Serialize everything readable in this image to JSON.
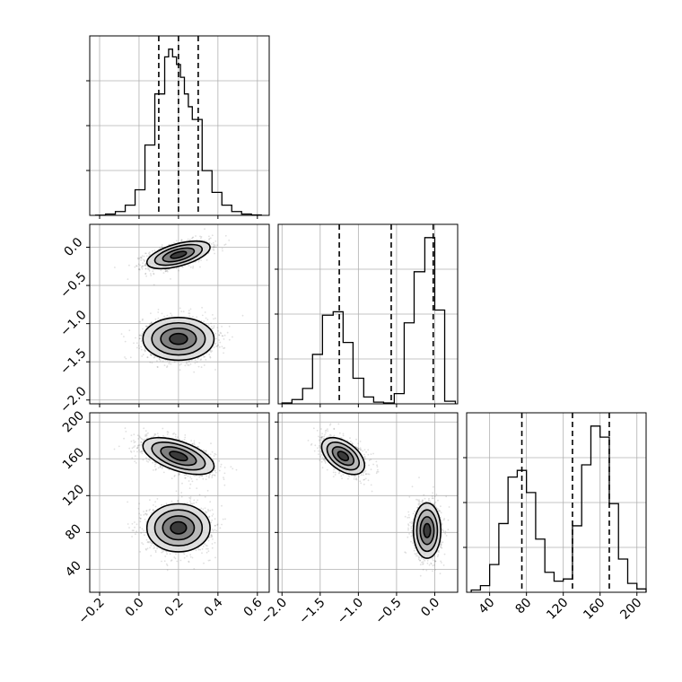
{
  "chart_data": {
    "type": "corner",
    "parameters": [
      {
        "ticks": [
          "−0.2",
          "0.0",
          "0.2",
          "0.4",
          "0.6"
        ],
        "tick_values": [
          -0.2,
          0.0,
          0.2,
          0.4,
          0.6
        ],
        "range": [
          -0.25,
          0.66
        ]
      },
      {
        "ticks": [
          "−2.0",
          "−1.5",
          "−1.0",
          "−0.5",
          "0.0"
        ],
        "tick_values": [
          -2.0,
          -1.5,
          -1.0,
          -0.5,
          0.0
        ],
        "range": [
          -2.05,
          0.3
        ]
      },
      {
        "ticks": [
          "40",
          "80",
          "120",
          "160",
          "200"
        ],
        "tick_values": [
          40,
          80,
          120,
          160,
          200
        ],
        "range": [
          15,
          210
        ]
      }
    ],
    "marginals": [
      {
        "param": 0,
        "quantiles": [
          0.1,
          0.2,
          0.3
        ],
        "bin_edges": [
          -0.22,
          -0.17,
          -0.12,
          -0.07,
          -0.02,
          0.03,
          0.08,
          0.13,
          0.15,
          0.17,
          0.19,
          0.21,
          0.23,
          0.25,
          0.27,
          0.32,
          0.37,
          0.42,
          0.47,
          0.52,
          0.57,
          0.62
        ],
        "counts": [
          0.2,
          1,
          3,
          8,
          20,
          55,
          95,
          124,
          130,
          124,
          118,
          108,
          95,
          85,
          75,
          35,
          18,
          8,
          3,
          1,
          0.3
        ]
      },
      {
        "param": 1,
        "quantiles": [
          -1.25,
          -0.57,
          -0.02
        ],
        "bin_edges": [
          -2.0,
          -1.87,
          -1.73,
          -1.6,
          -1.47,
          -1.33,
          -1.2,
          -1.07,
          -0.93,
          -0.8,
          -0.67,
          -0.53,
          -0.4,
          -0.27,
          -0.13,
          0.0,
          0.13,
          0.27
        ],
        "counts": [
          1,
          5,
          18,
          58,
          104,
          108,
          72,
          30,
          8,
          2,
          1,
          12,
          95,
          155,
          195,
          110,
          3
        ]
      },
      {
        "param": 2,
        "quantiles": [
          75,
          130,
          170
        ],
        "bin_edges": [
          20,
          30,
          40,
          50,
          60,
          70,
          80,
          90,
          100,
          110,
          120,
          130,
          140,
          150,
          160,
          170,
          180,
          190,
          200,
          210
        ],
        "counts": [
          2,
          6,
          25,
          62,
          104,
          110,
          90,
          48,
          18,
          10,
          12,
          60,
          115,
          150,
          140,
          80,
          30,
          8,
          3
        ]
      }
    ],
    "joint_panels": [
      {
        "x_param": 0,
        "y_param": 1,
        "modes": [
          {
            "center": [
              0.2,
              -0.1
            ],
            "spread": [
              0.08,
              0.09
            ],
            "correlation": 0.55
          },
          {
            "center": [
              0.2,
              -1.2
            ],
            "spread": [
              0.09,
              0.14
            ],
            "correlation": 0.0
          }
        ]
      },
      {
        "x_param": 0,
        "y_param": 2,
        "modes": [
          {
            "center": [
              0.2,
              163
            ],
            "spread": [
              0.09,
              10
            ],
            "correlation": -0.55
          },
          {
            "center": [
              0.2,
              85
            ],
            "spread": [
              0.08,
              13
            ],
            "correlation": 0.0
          }
        ]
      },
      {
        "x_param": 1,
        "y_param": 2,
        "modes": [
          {
            "center": [
              -1.2,
              163
            ],
            "spread": [
              0.14,
              10
            ],
            "correlation": -0.5
          },
          {
            "center": [
              -0.1,
              82
            ],
            "spread": [
              0.09,
              15
            ],
            "correlation": 0.0
          }
        ]
      }
    ],
    "contour_levels_sigma": [
      0.5,
      1.0,
      1.5,
      2.0
    ],
    "grid": true
  }
}
